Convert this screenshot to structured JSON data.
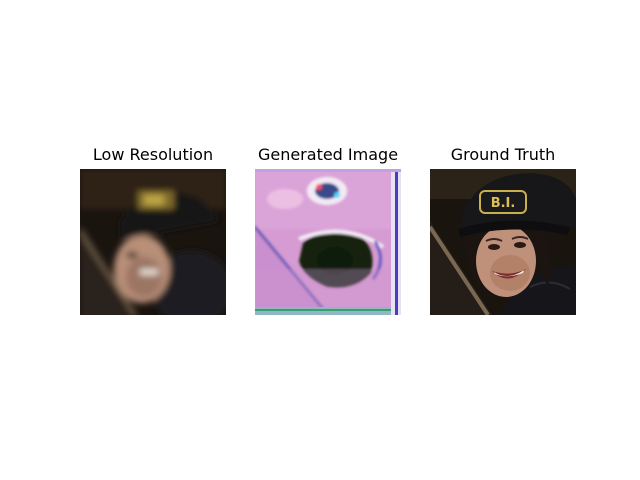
{
  "panels": [
    {
      "title": "Low Resolution"
    },
    {
      "title": "Generated Image"
    },
    {
      "title": "Ground Truth"
    }
  ],
  "cap_badge_text": "B.I.",
  "colors": {
    "background": "#ffffff",
    "dark_bg": "#1c1611",
    "cap": "#1a1a1c",
    "skin": "#b98a70",
    "generated_bg": "#d79ad0"
  }
}
